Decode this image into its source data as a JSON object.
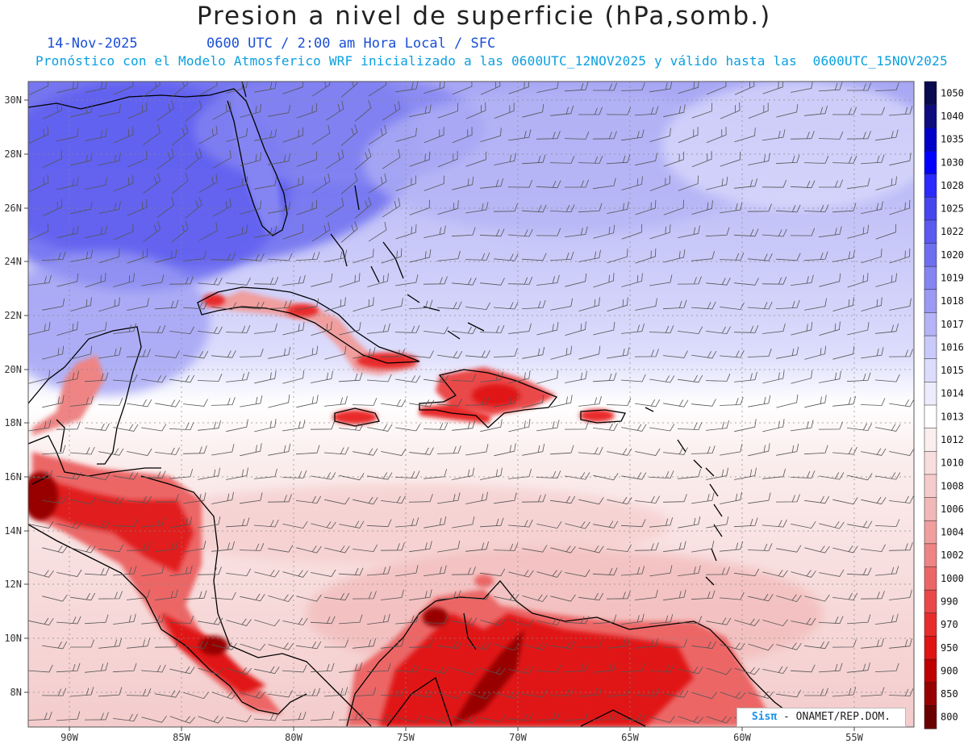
{
  "header": {
    "title": "Presion a nivel de superficie (hPa,somb.)",
    "date": "14-Nov-2025",
    "time_info": "0600 UTC / 2:00 am Hora Local / SFC",
    "forecast_info": "Pronóstico con el Modelo Atmosferico WRF inicializado a las 0600UTC_12NOV2025 y válido hasta las  0600UTC_15NOV2025"
  },
  "axes": {
    "lat_labels": [
      "30N",
      "28N",
      "26N",
      "24N",
      "22N",
      "20N",
      "18N",
      "16N",
      "14N",
      "12N",
      "10N",
      "8N"
    ],
    "lon_labels": [
      "90W",
      "85W",
      "80W",
      "75W",
      "70W",
      "65W",
      "60W",
      "55W"
    ]
  },
  "colorbar": {
    "levels": [
      {
        "label": "1050",
        "color": "#0a0a50"
      },
      {
        "label": "1040",
        "color": "#0d0d80"
      },
      {
        "label": "1035",
        "color": "#0000c8"
      },
      {
        "label": "1030",
        "color": "#0000ff"
      },
      {
        "label": "1028",
        "color": "#2a2aff"
      },
      {
        "label": "1025",
        "color": "#4646f0"
      },
      {
        "label": "1022",
        "color": "#5a5af0"
      },
      {
        "label": "1020",
        "color": "#6e6ef0"
      },
      {
        "label": "1019",
        "color": "#8484f2"
      },
      {
        "label": "1018",
        "color": "#9a9af4"
      },
      {
        "label": "1017",
        "color": "#b4b4f6"
      },
      {
        "label": "1016",
        "color": "#cacafa"
      },
      {
        "label": "1015",
        "color": "#dcdcfc"
      },
      {
        "label": "1014",
        "color": "#ececfd"
      },
      {
        "label": "1013",
        "color": "#ffffff"
      },
      {
        "label": "1012",
        "color": "#fbeeee"
      },
      {
        "label": "1010",
        "color": "#f8dede"
      },
      {
        "label": "1008",
        "color": "#f5cccc"
      },
      {
        "label": "1006",
        "color": "#f2b8b8"
      },
      {
        "label": "1004",
        "color": "#f09e9e"
      },
      {
        "label": "1002",
        "color": "#ee8484"
      },
      {
        "label": "1000",
        "color": "#ec6666"
      },
      {
        "label": "990",
        "color": "#ea4848"
      },
      {
        "label": "970",
        "color": "#e82c2c"
      },
      {
        "label": "950",
        "color": "#e01414"
      },
      {
        "label": "900",
        "color": "#c00000"
      },
      {
        "label": "850",
        "color": "#980000"
      },
      {
        "label": "800",
        "color": "#6a0000"
      }
    ]
  },
  "credit": {
    "logo": "Sisπ",
    "text": "- ONAMET/REP.DOM."
  }
}
